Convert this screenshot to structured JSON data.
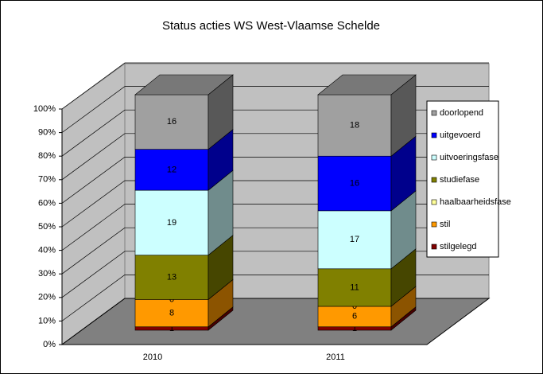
{
  "chart_data": {
    "type": "bar",
    "stacked": "percent",
    "title": "Status acties WS West-Vlaamse Schelde",
    "categories": [
      "2010",
      "2011"
    ],
    "series": [
      {
        "name": "stilgelegd",
        "color": "#800000",
        "values": [
          1,
          1
        ]
      },
      {
        "name": "stil",
        "color": "#ff9900",
        "values": [
          8,
          6
        ]
      },
      {
        "name": "haalbaarheidsfase",
        "color": "#ffff99",
        "values": [
          0,
          0
        ]
      },
      {
        "name": "studiefase",
        "color": "#808000",
        "values": [
          13,
          11
        ]
      },
      {
        "name": "uitvoeringsfase",
        "color": "#ccffff",
        "values": [
          19,
          17
        ]
      },
      {
        "name": "uitgevoerd",
        "color": "#0000ff",
        "values": [
          12,
          16
        ]
      },
      {
        "name": "doorlopend",
        "color": "#a0a0a0",
        "values": [
          16,
          18
        ]
      }
    ],
    "ylim": [
      0,
      100
    ],
    "yticks": [
      {
        "value": 0,
        "label": "0%"
      },
      {
        "value": 10,
        "label": "10%"
      },
      {
        "value": 20,
        "label": "20%"
      },
      {
        "value": 30,
        "label": "30%"
      },
      {
        "value": 40,
        "label": "40%"
      },
      {
        "value": 50,
        "label": "50%"
      },
      {
        "value": 60,
        "label": "60%"
      },
      {
        "value": 70,
        "label": "70%"
      },
      {
        "value": 80,
        "label": "80%"
      },
      {
        "value": 90,
        "label": "90%"
      },
      {
        "value": 100,
        "label": "100%"
      }
    ],
    "grid": true,
    "legend": "right"
  }
}
